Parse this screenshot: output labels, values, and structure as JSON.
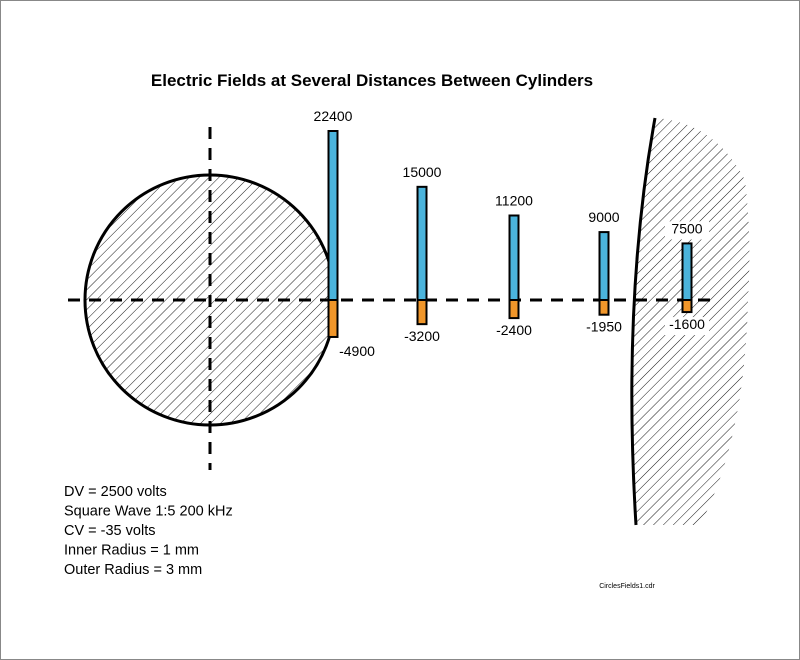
{
  "chart_data": {
    "type": "bar",
    "title": "Electric Fields at Several Distances Between Cylinders",
    "categories": [
      null,
      null,
      null,
      null,
      null
    ],
    "series": [
      {
        "color": "#4bb4dc",
        "values": [
          22400,
          15000,
          11200,
          9000,
          7500
        ]
      },
      {
        "color": "#f0962a",
        "values": [
          -4900,
          -3200,
          -2400,
          -1950,
          -1600
        ]
      }
    ],
    "notes": [
      "DV = 2500 volts",
      "Square Wave 1:5 200 kHz",
      "CV = -35 volts",
      "Inner Radius = 1 mm",
      "Outer Radius = 3 mm"
    ],
    "footer": "CirclesFields1.cdr"
  }
}
